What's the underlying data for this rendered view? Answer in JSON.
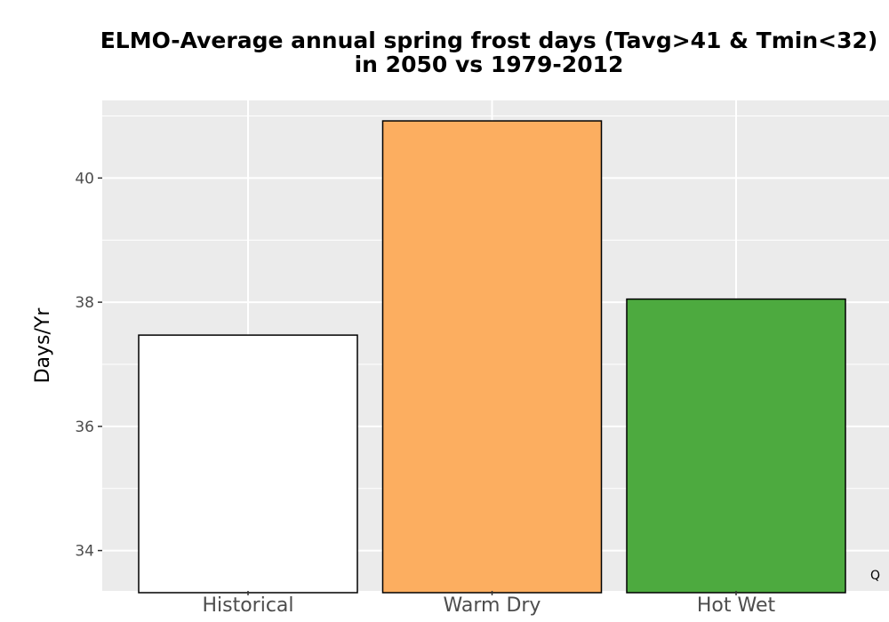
{
  "chart_data": {
    "type": "bar",
    "title": "ELMO-Average annual spring frost days (Tavg>41 & Tmin<32)",
    "subtitle": "in 2050 vs 1979-2012",
    "xlabel": "",
    "ylabel": "Days/Yr",
    "categories": [
      "Historical",
      "Warm Dry",
      "Hot Wet"
    ],
    "values": [
      37.47,
      40.92,
      38.05
    ],
    "colors": [
      "#ffffff",
      "#fcae60",
      "#4daa3f"
    ],
    "bar_outline": "#000000",
    "ylim": [
      33.35,
      41.25
    ],
    "yticks": [
      34,
      36,
      38,
      40
    ],
    "grid": true,
    "legend": "none"
  },
  "corner_mark": "Q"
}
